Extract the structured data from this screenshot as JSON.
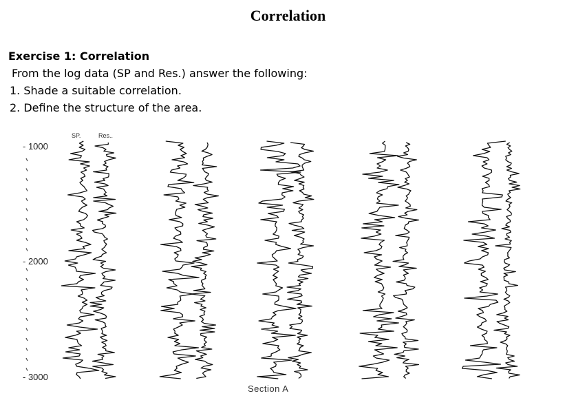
{
  "page": {
    "title": "Correlation",
    "exercise_heading": "Exercise 1: Correlation",
    "instruction": "From the log data (SP and Res.) answer the following:",
    "items": [
      "1. Shade a suitable correlation.",
      "2. Define the structure of the area."
    ]
  },
  "figure": {
    "depth_labels": [
      "- 1000",
      "- 2000",
      "- 3000"
    ],
    "log_headers": {
      "sp": "SP.",
      "res": "Res.."
    },
    "section_label": "Section A",
    "wells": 5,
    "ink_color": "#111111"
  }
}
